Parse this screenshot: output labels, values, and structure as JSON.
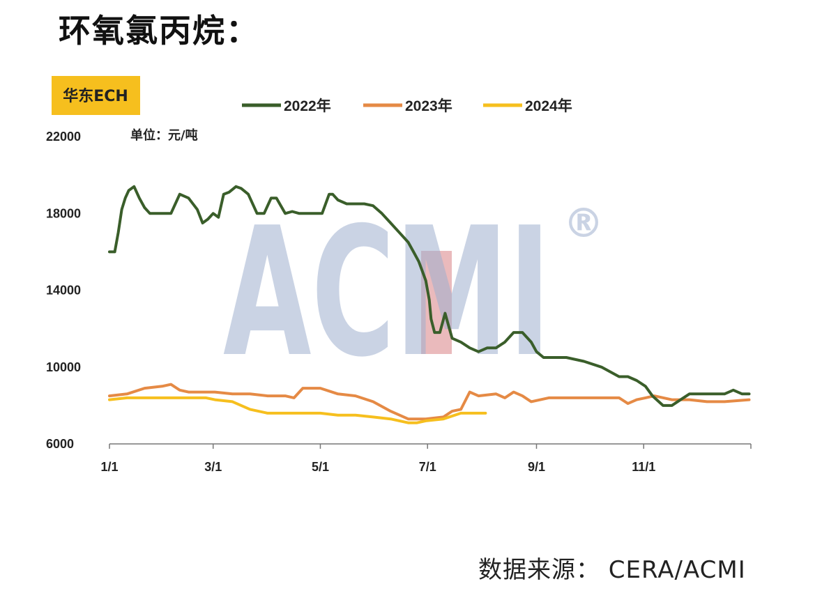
{
  "page": {
    "title": "环氧氯丙烷：",
    "source": "数据来源：  CERA/ACMI"
  },
  "watermark": {
    "text": "ACMI",
    "mark": "®"
  },
  "chart_data": {
    "type": "line",
    "badge": "华东ECH",
    "unit": "单位：元/吨",
    "legend_position": "top",
    "ylim": [
      6000,
      22000
    ],
    "yticks": [
      6000,
      10000,
      14000,
      18000,
      22000
    ],
    "ytick_labels": [
      "6000",
      "10000",
      "14000",
      "18000",
      "22000"
    ],
    "xlim": [
      0,
      365
    ],
    "xticks": [
      0,
      59,
      120,
      181,
      243,
      304
    ],
    "xtick_labels": [
      "1/1",
      "3/1",
      "5/1",
      "7/1",
      "9/1",
      "11/1"
    ],
    "grid": false,
    "colors": {
      "2022年": "#3a5e2a",
      "2023年": "#e58a45",
      "2024年": "#f6bf1e"
    },
    "series": [
      {
        "name": "2022年",
        "color": "#3a5e2a",
        "x": [
          0,
          3,
          5,
          7,
          9,
          11,
          14,
          17,
          20,
          23,
          26,
          30,
          35,
          40,
          45,
          50,
          53,
          56,
          59,
          62,
          65,
          68,
          72,
          75,
          79,
          84,
          88,
          92,
          95,
          100,
          104,
          108,
          112,
          115,
          121,
          125,
          127,
          130,
          135,
          140,
          145,
          150,
          155,
          160,
          165,
          170,
          173,
          176,
          178,
          180,
          182,
          183,
          185,
          188,
          191,
          195,
          200,
          205,
          210,
          215,
          220,
          225,
          230,
          235,
          240,
          243,
          247,
          250,
          260,
          270,
          280,
          290,
          295,
          300,
          305,
          309,
          315,
          320,
          325,
          330,
          335,
          340,
          345,
          350,
          355,
          360,
          364
        ],
        "y": [
          16000,
          16000,
          17000,
          18200,
          18800,
          19200,
          19400,
          18800,
          18300,
          18000,
          18000,
          18000,
          18000,
          19000,
          18800,
          18200,
          17500,
          17700,
          18000,
          17800,
          19000,
          19100,
          19400,
          19300,
          19000,
          18000,
          18000,
          18800,
          18800,
          18000,
          18100,
          18000,
          18000,
          18000,
          18000,
          19000,
          19000,
          18700,
          18500,
          18500,
          18500,
          18400,
          18000,
          17500,
          17000,
          16500,
          16000,
          15500,
          15000,
          14500,
          13500,
          12500,
          11800,
          11800,
          12800,
          11500,
          11300,
          11000,
          10800,
          11000,
          11000,
          11300,
          11800,
          11800,
          11300,
          10800,
          10500,
          10500,
          10500,
          10300,
          10000,
          9500,
          9500,
          9300,
          9000,
          8500,
          8000,
          8000,
          8300,
          8600,
          8600,
          8600,
          8600,
          8600,
          8800,
          8600,
          8600
        ]
      },
      {
        "name": "2023年",
        "color": "#e58a45",
        "x": [
          0,
          10,
          20,
          30,
          35,
          40,
          45,
          50,
          60,
          70,
          80,
          90,
          100,
          105,
          110,
          120,
          130,
          140,
          150,
          160,
          170,
          180,
          190,
          195,
          200,
          205,
          210,
          220,
          225,
          230,
          235,
          240,
          250,
          260,
          270,
          280,
          290,
          295,
          300,
          305,
          310,
          320,
          330,
          340,
          350,
          364
        ],
        "y": [
          8500,
          8600,
          8900,
          9000,
          9100,
          8800,
          8700,
          8700,
          8700,
          8600,
          8600,
          8500,
          8500,
          8400,
          8900,
          8900,
          8600,
          8500,
          8200,
          7700,
          7300,
          7300,
          7400,
          7700,
          7800,
          8700,
          8500,
          8600,
          8400,
          8700,
          8500,
          8200,
          8400,
          8400,
          8400,
          8400,
          8400,
          8100,
          8300,
          8400,
          8500,
          8300,
          8300,
          8200,
          8200,
          8300
        ]
      },
      {
        "name": "2024年",
        "color": "#f6bf1e",
        "x": [
          0,
          10,
          20,
          30,
          40,
          50,
          55,
          60,
          70,
          80,
          90,
          100,
          110,
          120,
          130,
          140,
          150,
          160,
          170,
          175,
          180,
          190,
          200,
          205,
          214
        ],
        "y": [
          8300,
          8400,
          8400,
          8400,
          8400,
          8400,
          8400,
          8300,
          8200,
          7800,
          7600,
          7600,
          7600,
          7600,
          7500,
          7500,
          7400,
          7300,
          7100,
          7100,
          7200,
          7300,
          7600,
          7600,
          7600
        ]
      }
    ]
  }
}
